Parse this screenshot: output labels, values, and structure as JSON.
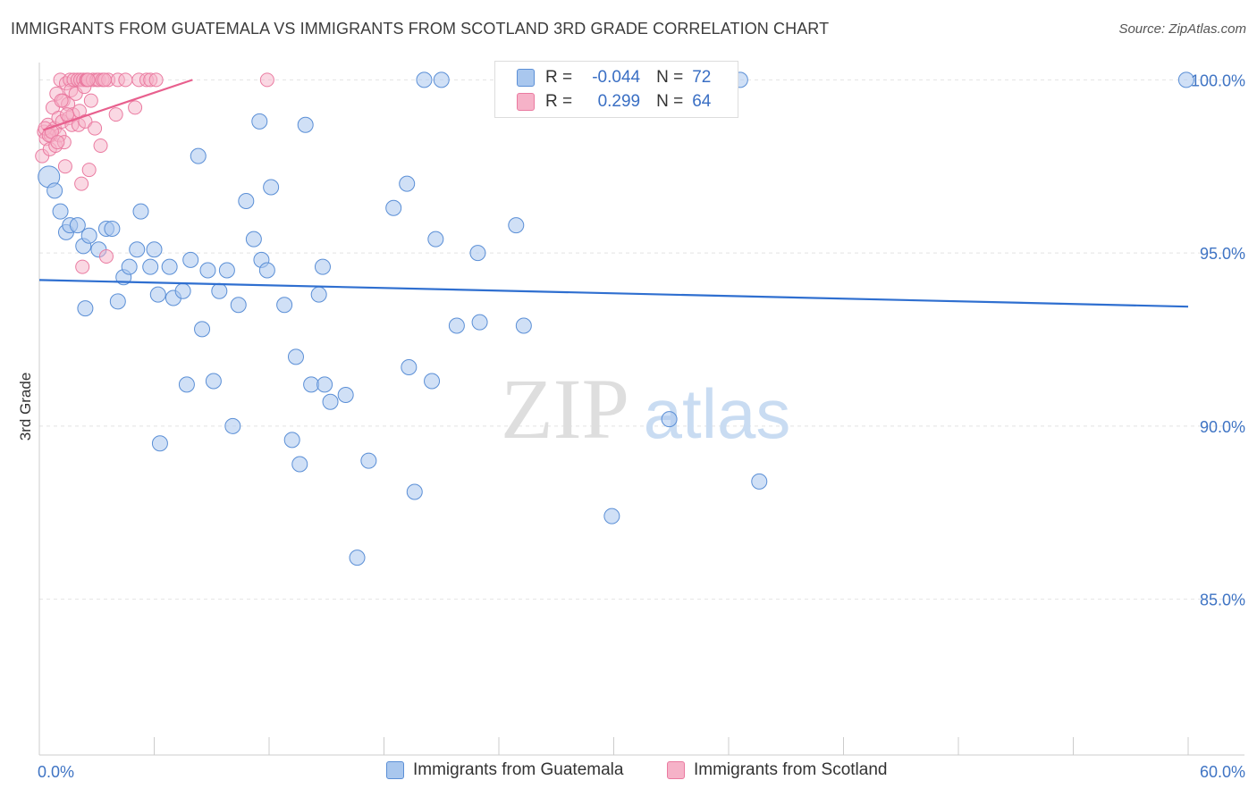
{
  "title": "IMMIGRANTS FROM GUATEMALA VS IMMIGRANTS FROM SCOTLAND 3RD GRADE CORRELATION CHART",
  "source": "Source: ZipAtlas.com",
  "watermark": {
    "zip": "ZIP",
    "atlas": "atlas"
  },
  "stats": {
    "guatemala": {
      "r_label": "R =",
      "r_value": "-0.044",
      "n_label": "N =",
      "n_value": "72"
    },
    "scotland": {
      "r_label": "R =",
      "r_value": "0.299",
      "n_label": "N =",
      "n_value": "64"
    }
  },
  "legend": {
    "guatemala": "Immigrants from Guatemala",
    "scotland": "Immigrants from Scotland"
  },
  "colors": {
    "guatemala_fill": "#a9c7ee",
    "guatemala_stroke": "#5b8fd6",
    "guatemala_line": "#2f6fd0",
    "scotland_fill": "#f6b2c8",
    "scotland_stroke": "#ea7aa0",
    "scotland_line": "#e8608e",
    "tick_label": "#3f74c4",
    "grid": "#e4e4e4"
  },
  "chart_data": {
    "type": "scatter",
    "title": "IMMIGRANTS FROM GUATEMALA VS IMMIGRANTS FROM SCOTLAND 3RD GRADE CORRELATION CHART",
    "xlabel": "",
    "ylabel": "3rd Grade",
    "xlim": [
      0,
      60
    ],
    "ylim": [
      80.5,
      100.5
    ],
    "x_tick_labels": [
      {
        "value": 0,
        "label": "0.0%"
      },
      {
        "value": 60,
        "label": "60.0%"
      }
    ],
    "y_ticks": [
      {
        "value": 100,
        "label": "100.0%"
      },
      {
        "value": 95,
        "label": "95.0%"
      },
      {
        "value": 90,
        "label": "90.0%"
      },
      {
        "value": 85,
        "label": "85.0%"
      }
    ],
    "x_minor_ticks": [
      0,
      6,
      12,
      18,
      24,
      30,
      36,
      42,
      48,
      54,
      60
    ],
    "series": [
      {
        "name": "Immigrants from Guatemala",
        "trend": [
          [
            0,
            94.22
          ],
          [
            60,
            93.45
          ]
        ],
        "points": [
          [
            0.5,
            97.2
          ],
          [
            0.8,
            96.8
          ],
          [
            1.1,
            96.2
          ],
          [
            1.4,
            95.6
          ],
          [
            1.6,
            95.8
          ],
          [
            2.0,
            95.8
          ],
          [
            2.3,
            95.2
          ],
          [
            2.6,
            95.5
          ],
          [
            3.1,
            95.1
          ],
          [
            3.5,
            95.7
          ],
          [
            3.8,
            95.7
          ],
          [
            4.1,
            93.6
          ],
          [
            4.4,
            94.3
          ],
          [
            4.7,
            94.6
          ],
          [
            5.1,
            95.1
          ],
          [
            5.3,
            96.2
          ],
          [
            5.8,
            94.6
          ],
          [
            6.0,
            95.1
          ],
          [
            6.2,
            93.8
          ],
          [
            6.8,
            94.6
          ],
          [
            7.0,
            93.7
          ],
          [
            7.5,
            93.9
          ],
          [
            7.9,
            94.8
          ],
          [
            8.3,
            97.8
          ],
          [
            8.5,
            92.8
          ],
          [
            8.8,
            94.5
          ],
          [
            9.1,
            91.3
          ],
          [
            9.4,
            93.9
          ],
          [
            9.8,
            94.5
          ],
          [
            10.1,
            90.0
          ],
          [
            10.4,
            93.5
          ],
          [
            10.8,
            96.5
          ],
          [
            11.2,
            95.4
          ],
          [
            11.5,
            98.8
          ],
          [
            11.6,
            94.8
          ],
          [
            12.1,
            96.9
          ],
          [
            12.8,
            93.5
          ],
          [
            13.2,
            89.6
          ],
          [
            13.4,
            92.0
          ],
          [
            13.6,
            88.9
          ],
          [
            13.9,
            98.7
          ],
          [
            14.2,
            91.2
          ],
          [
            14.6,
            93.8
          ],
          [
            14.8,
            94.6
          ],
          [
            14.9,
            91.2
          ],
          [
            15.2,
            90.7
          ],
          [
            16.0,
            90.9
          ],
          [
            16.6,
            86.2
          ],
          [
            17.2,
            89.0
          ],
          [
            18.5,
            96.3
          ],
          [
            19.2,
            97.0
          ],
          [
            19.3,
            91.7
          ],
          [
            19.6,
            88.1
          ],
          [
            20.1,
            100.0
          ],
          [
            20.5,
            91.3
          ],
          [
            20.7,
            95.4
          ],
          [
            21.0,
            100.0
          ],
          [
            21.8,
            92.9
          ],
          [
            22.9,
            95.0
          ],
          [
            23.0,
            93.0
          ],
          [
            24.9,
            95.8
          ],
          [
            25.3,
            92.9
          ],
          [
            29.9,
            87.4
          ],
          [
            32.9,
            90.2
          ],
          [
            33.4,
            100.0
          ],
          [
            36.6,
            100.0
          ],
          [
            37.6,
            88.4
          ],
          [
            59.9,
            100.0
          ],
          [
            6.3,
            89.5
          ],
          [
            7.7,
            91.2
          ],
          [
            2.4,
            93.4
          ],
          [
            11.9,
            94.5
          ]
        ]
      },
      {
        "name": "Immigrants from Scotland",
        "trend": [
          [
            0.2,
            98.55
          ],
          [
            8.0,
            100.0
          ]
        ],
        "points": [
          [
            0.15,
            97.8
          ],
          [
            0.25,
            98.5
          ],
          [
            0.35,
            98.3
          ],
          [
            0.45,
            98.7
          ],
          [
            0.55,
            98.0
          ],
          [
            0.6,
            98.4
          ],
          [
            0.7,
            99.2
          ],
          [
            0.8,
            98.6
          ],
          [
            0.85,
            98.1
          ],
          [
            0.9,
            99.6
          ],
          [
            1.0,
            98.9
          ],
          [
            1.05,
            98.4
          ],
          [
            1.1,
            100.0
          ],
          [
            1.2,
            98.8
          ],
          [
            1.25,
            99.4
          ],
          [
            1.3,
            98.2
          ],
          [
            1.35,
            97.5
          ],
          [
            1.4,
            99.9
          ],
          [
            1.5,
            99.3
          ],
          [
            1.55,
            98.9
          ],
          [
            1.6,
            100.0
          ],
          [
            1.65,
            99.7
          ],
          [
            1.7,
            98.7
          ],
          [
            1.75,
            99.0
          ],
          [
            1.8,
            100.0
          ],
          [
            1.9,
            99.6
          ],
          [
            2.0,
            100.0
          ],
          [
            2.05,
            98.7
          ],
          [
            2.1,
            99.1
          ],
          [
            2.15,
            100.0
          ],
          [
            2.2,
            97.0
          ],
          [
            2.25,
            94.6
          ],
          [
            2.3,
            100.0
          ],
          [
            2.35,
            99.8
          ],
          [
            2.4,
            98.8
          ],
          [
            2.45,
            100.0
          ],
          [
            2.5,
            100.0
          ],
          [
            2.6,
            97.4
          ],
          [
            2.7,
            99.4
          ],
          [
            2.8,
            100.0
          ],
          [
            2.9,
            98.6
          ],
          [
            3.0,
            100.0
          ],
          [
            3.1,
            100.0
          ],
          [
            3.2,
            98.1
          ],
          [
            3.3,
            100.0
          ],
          [
            3.5,
            94.9
          ],
          [
            3.6,
            100.0
          ],
          [
            4.0,
            99.0
          ],
          [
            4.1,
            100.0
          ],
          [
            4.5,
            100.0
          ],
          [
            5.0,
            99.2
          ],
          [
            5.2,
            100.0
          ],
          [
            5.6,
            100.0
          ],
          [
            5.8,
            100.0
          ],
          [
            6.1,
            100.0
          ],
          [
            11.9,
            100.0
          ],
          [
            0.3,
            98.6
          ],
          [
            0.5,
            98.4
          ],
          [
            0.65,
            98.5
          ],
          [
            0.95,
            98.2
          ],
          [
            1.15,
            99.4
          ],
          [
            1.45,
            99.0
          ],
          [
            3.4,
            100.0
          ],
          [
            2.55,
            100.0
          ]
        ]
      }
    ]
  }
}
